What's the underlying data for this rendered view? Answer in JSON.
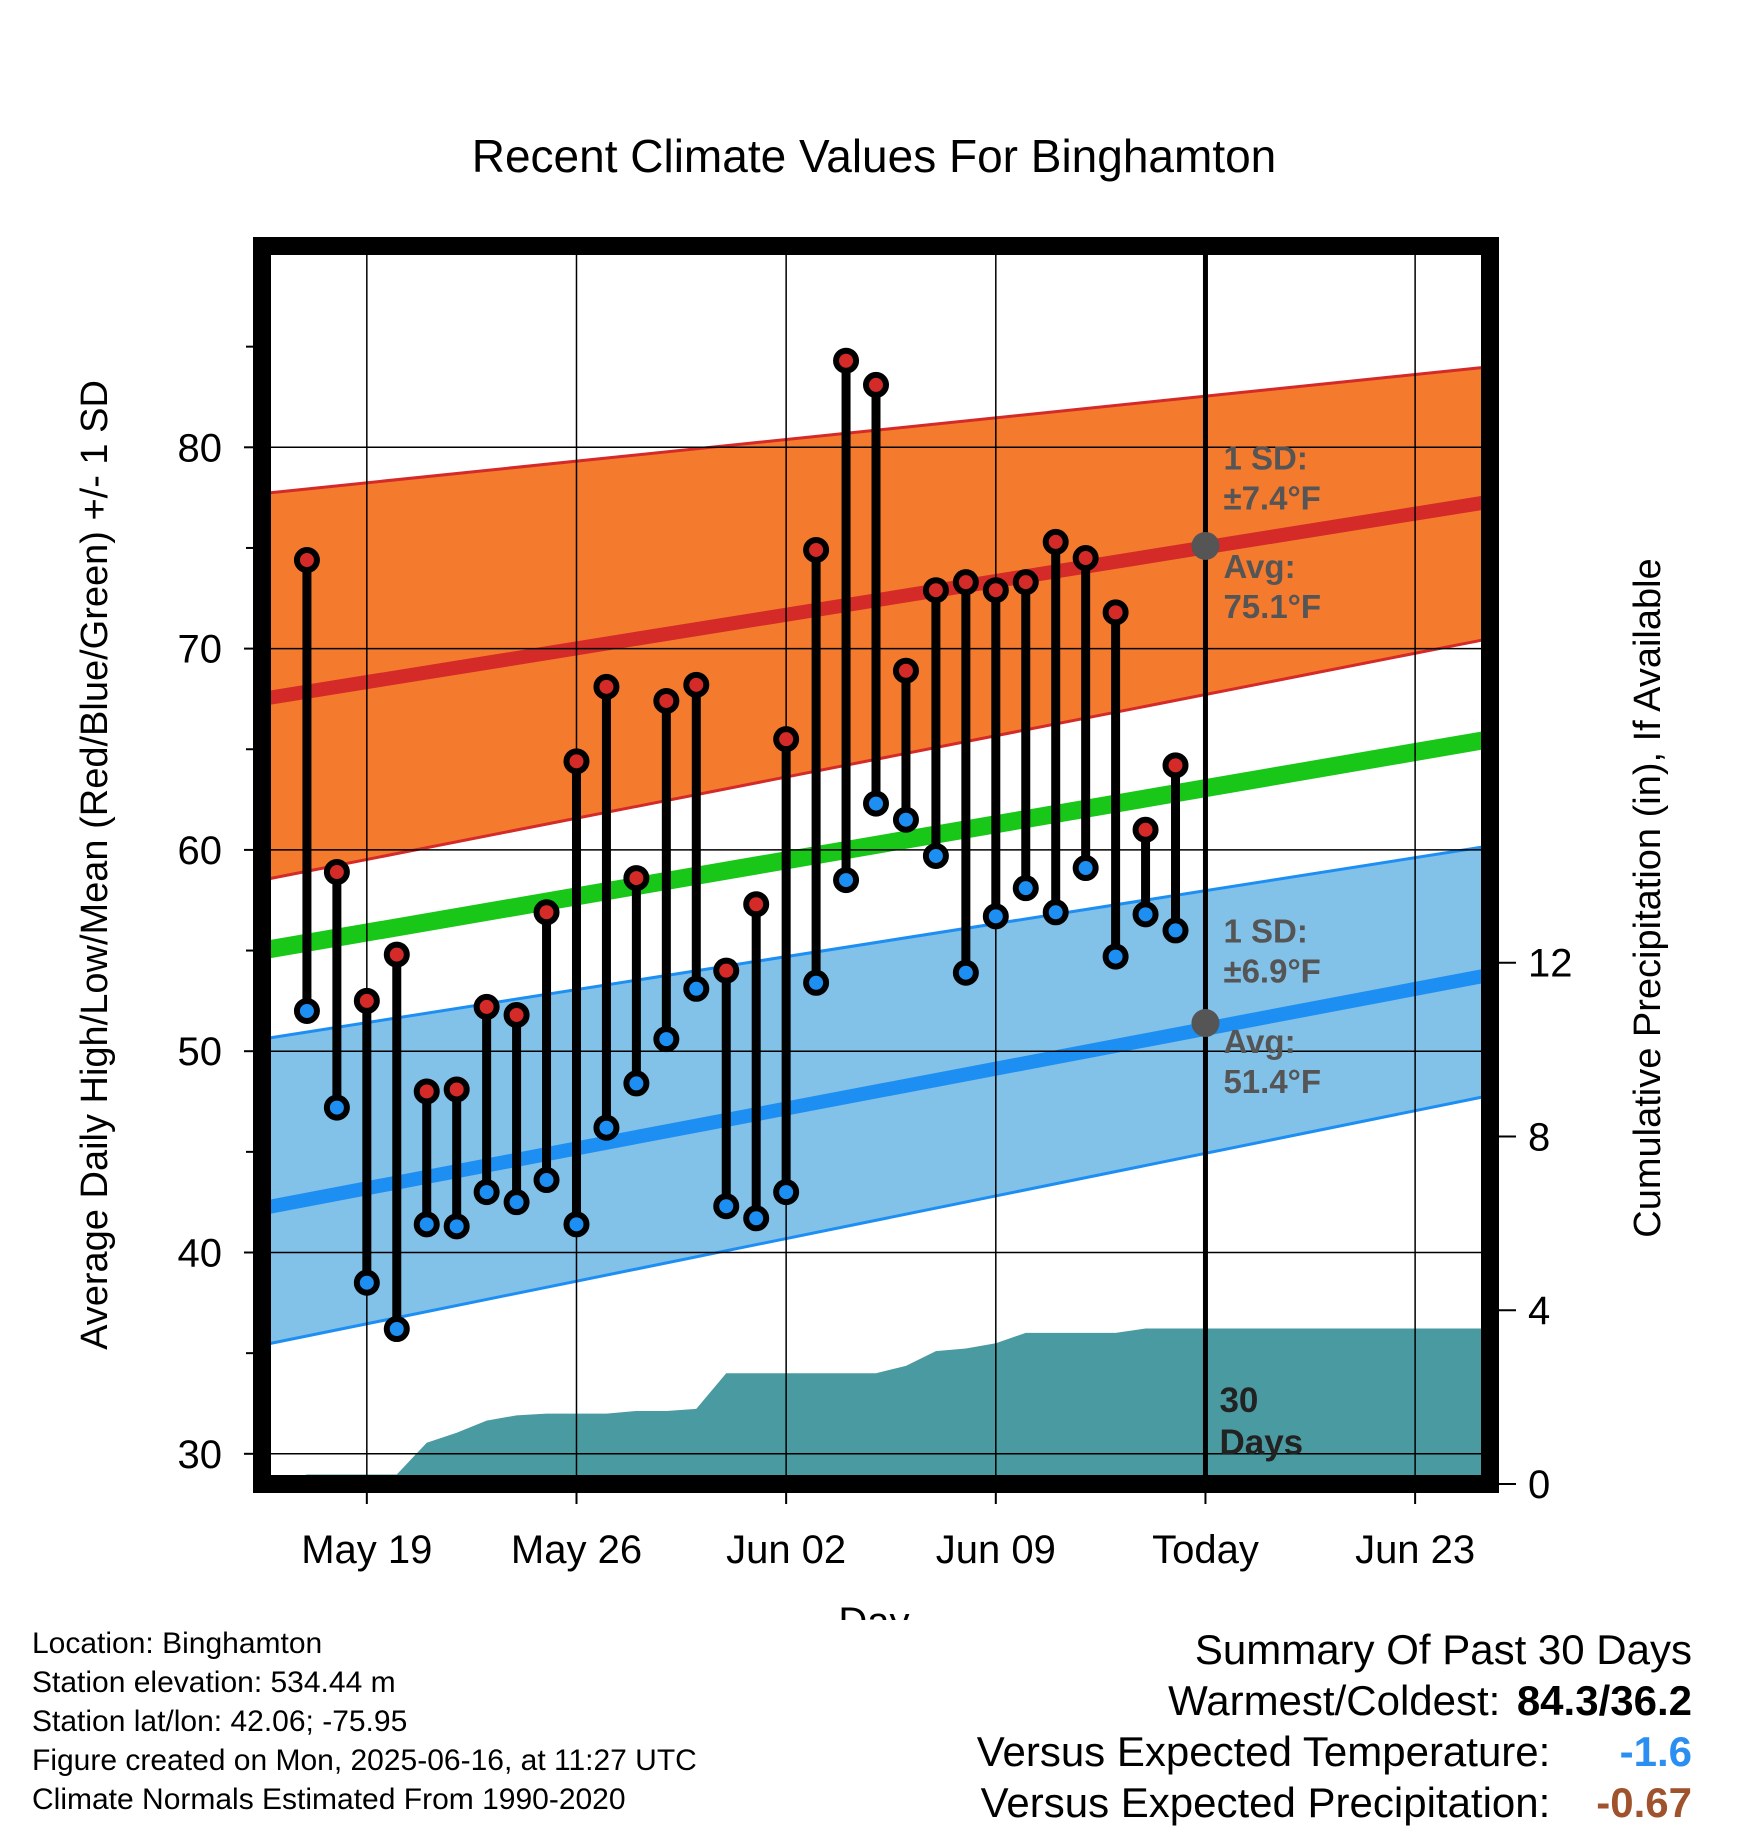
{
  "chart_data": {
    "type": "line",
    "title": "Recent Climate Values For Binghamton",
    "xlabel": "Day",
    "ylabel": "Average Daily High/Low/Mean (Red/Blue/Green) +/- 1 SD",
    "y2label": "Cumulative Precipitation (in), If Available",
    "ylim": [
      28.5,
      90
    ],
    "y2lim": [
      0,
      28.5
    ],
    "yticks": [
      30,
      40,
      50,
      60,
      70,
      80
    ],
    "y2ticks": [
      0,
      4,
      8,
      12
    ],
    "xlim": [
      "2025-05-15T12:00",
      "2025-06-25T12:00"
    ],
    "xticks": [
      {
        "date": "2025-05-19",
        "label": "May 19"
      },
      {
        "date": "2025-05-26",
        "label": "May 26"
      },
      {
        "date": "2025-06-02",
        "label": "Jun 02"
      },
      {
        "date": "2025-06-09",
        "label": "Jun 09"
      },
      {
        "date": "2025-06-16",
        "label": "Today"
      },
      {
        "date": "2025-06-23",
        "label": "Jun 23"
      }
    ],
    "today": "2025-06-16",
    "window_label": "30\nDays",
    "normals": {
      "dates": [
        "2025-05-15T12:00",
        "2025-06-25T12:00"
      ],
      "high_avg": [
        67.5,
        77.3
      ],
      "high_sd_upper": [
        77.7,
        84.0
      ],
      "high_sd_lower": [
        58.5,
        70.5
      ],
      "low_avg": [
        42.2,
        53.8
      ],
      "low_sd_upper": [
        50.6,
        60.2
      ],
      "low_sd_lower": [
        35.4,
        47.8
      ],
      "mean_avg": [
        55.0,
        65.5
      ]
    },
    "normal_annotations": {
      "high_sd": "1 SD:\n±7.4°F",
      "high_avg": "Avg:\n75.1°F",
      "low_sd": "1 SD:\n±6.9°F",
      "low_avg": "Avg:\n51.4°F",
      "high_avg_value": 75.1,
      "low_avg_value": 51.4
    },
    "series": [
      {
        "name": "High",
        "dates": [
          "2025-05-17",
          "2025-05-18",
          "2025-05-19",
          "2025-05-20",
          "2025-05-21",
          "2025-05-22",
          "2025-05-23",
          "2025-05-24",
          "2025-05-25",
          "2025-05-26",
          "2025-05-27",
          "2025-05-28",
          "2025-05-29",
          "2025-05-30",
          "2025-05-31",
          "2025-06-01",
          "2025-06-02",
          "2025-06-03",
          "2025-06-04",
          "2025-06-05",
          "2025-06-06",
          "2025-06-07",
          "2025-06-08",
          "2025-06-09",
          "2025-06-10",
          "2025-06-11",
          "2025-06-12",
          "2025-06-13",
          "2025-06-14",
          "2025-06-15"
        ],
        "values": [
          74.4,
          58.9,
          52.5,
          54.8,
          48.0,
          48.1,
          52.2,
          51.8,
          56.9,
          64.4,
          68.1,
          58.6,
          67.4,
          68.2,
          54.0,
          57.3,
          65.5,
          74.9,
          84.3,
          83.1,
          68.9,
          72.9,
          73.3,
          72.9,
          73.3,
          75.3,
          74.5,
          71.8,
          61.0,
          64.2
        ]
      },
      {
        "name": "Low",
        "dates": [
          "2025-05-17",
          "2025-05-18",
          "2025-05-19",
          "2025-05-20",
          "2025-05-21",
          "2025-05-22",
          "2025-05-23",
          "2025-05-24",
          "2025-05-25",
          "2025-05-26",
          "2025-05-27",
          "2025-05-28",
          "2025-05-29",
          "2025-05-30",
          "2025-05-31",
          "2025-06-01",
          "2025-06-02",
          "2025-06-03",
          "2025-06-04",
          "2025-06-05",
          "2025-06-06",
          "2025-06-07",
          "2025-06-08",
          "2025-06-09",
          "2025-06-10",
          "2025-06-11",
          "2025-06-12",
          "2025-06-13",
          "2025-06-14",
          "2025-06-15"
        ],
        "values": [
          52.0,
          47.2,
          38.5,
          36.2,
          41.4,
          41.3,
          43.0,
          42.5,
          43.6,
          41.4,
          46.2,
          48.4,
          50.6,
          53.1,
          42.3,
          41.7,
          43.0,
          53.4,
          58.5,
          62.3,
          61.5,
          59.7,
          53.9,
          56.7,
          58.1,
          56.9,
          59.1,
          54.7,
          56.8,
          56.0
        ]
      },
      {
        "name": "Cumulative Precipitation",
        "dates": [
          "2025-05-16",
          "2025-05-17",
          "2025-05-18",
          "2025-05-19",
          "2025-05-20",
          "2025-05-21",
          "2025-05-22",
          "2025-05-23",
          "2025-05-24",
          "2025-05-25",
          "2025-05-26",
          "2025-05-27",
          "2025-05-28",
          "2025-05-29",
          "2025-05-30",
          "2025-05-31",
          "2025-06-01",
          "2025-06-02",
          "2025-06-03",
          "2025-06-04",
          "2025-06-05",
          "2025-06-06",
          "2025-06-07",
          "2025-06-08",
          "2025-06-09",
          "2025-06-10",
          "2025-06-11",
          "2025-06-12",
          "2025-06-13",
          "2025-06-14",
          "2025-06-15",
          "2025-06-25T12:00"
        ],
        "values": [
          0.05,
          0.22,
          0.22,
          0.22,
          0.22,
          0.95,
          1.18,
          1.46,
          1.58,
          1.62,
          1.62,
          1.62,
          1.68,
          1.68,
          1.73,
          2.55,
          2.55,
          2.55,
          2.55,
          2.55,
          2.55,
          2.72,
          3.06,
          3.12,
          3.24,
          3.48,
          3.48,
          3.48,
          3.48,
          3.58,
          3.58,
          3.58
        ]
      }
    ],
    "colors": {
      "high_band": "#f47a2e",
      "high_line": "#d42a28",
      "low_band": "#82c1e8",
      "low_line": "#1e8ff2",
      "mean_line": "#18c718",
      "precip": "#4a9aa1",
      "high_marker": "#d42a28",
      "low_marker": "#1e8ff2",
      "annotation": "#555555"
    }
  },
  "footer": {
    "location": "Location: Binghamton",
    "elevation": "Station elevation: 534.44 m",
    "latlon": "Station lat/lon: 42.06; -75.95",
    "created": "Figure created on Mon, 2025-06-16, at 11:27 UTC",
    "normals": "Climate Normals Estimated From 1990-2020"
  },
  "summary": {
    "title": "Summary Of Past 30 Days",
    "warm_cold_label": "Warmest/Coldest:",
    "warm_cold_value": "84.3/36.2",
    "temp_label": "Versus Expected Temperature:",
    "temp_value": "-1.6",
    "temp_color": "#2a8ff0",
    "precip_label": "Versus Expected Precipitation:",
    "precip_value": "-0.67",
    "precip_color": "#a0522d"
  }
}
